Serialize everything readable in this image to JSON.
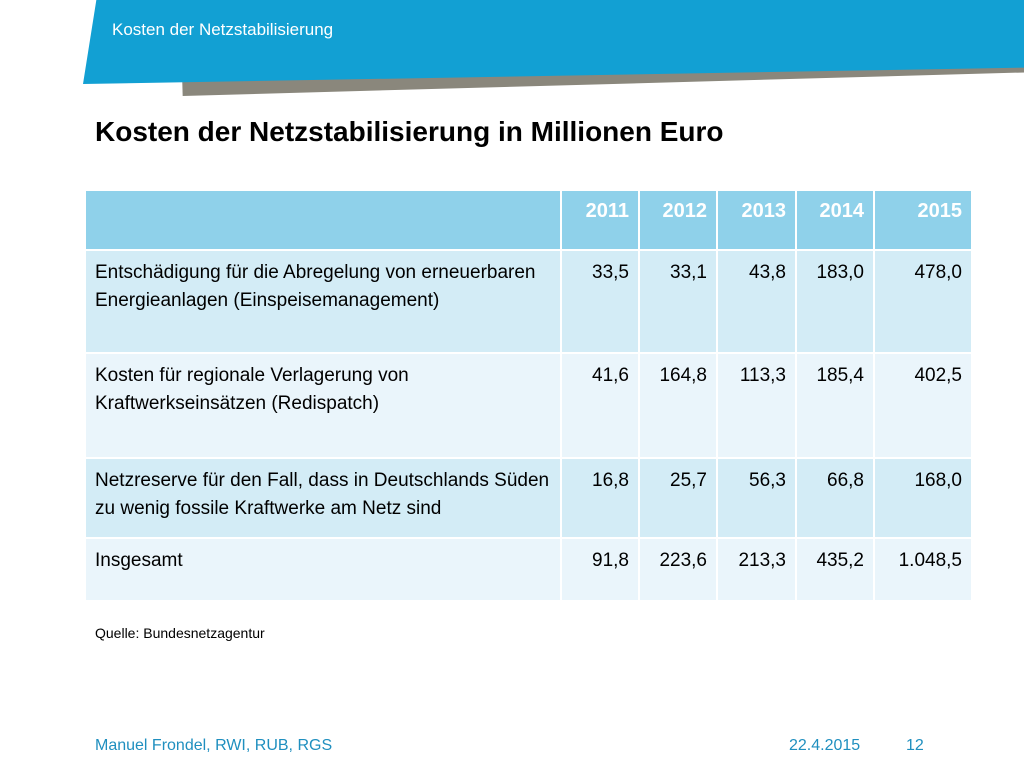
{
  "header": {
    "title": "Kosten der Netzstabilisierung"
  },
  "slide": {
    "title": "Kosten der Netzstabilisierung in Millionen Euro"
  },
  "table": {
    "columns": [
      "",
      "2011",
      "2012",
      "2013",
      "2014",
      "2015"
    ],
    "rows": [
      {
        "label": "Entschädigung für die Abregelung von erneuerbaren Energieanlagen (Einspeisemanagement)",
        "values": [
          "33,5",
          "33,1",
          "43,8",
          "183,0",
          "478,0"
        ]
      },
      {
        "label": "Kosten für regionale Verlagerung von Kraftwerkseinsätzen (Redispatch)",
        "values": [
          "41,6",
          "164,8",
          "113,3",
          "185,4",
          "402,5"
        ]
      },
      {
        "label": "Netzreserve für den Fall, dass in Deutschlands Süden zu wenig fossile Kraftwerke am Netz sind",
        "values": [
          "16,8",
          "25,7",
          "56,3",
          "66,8",
          "168,0"
        ]
      },
      {
        "label": "Insgesamt",
        "values": [
          "91,8",
          "223,6",
          "213,3",
          "435,2",
          "1.048,5"
        ]
      }
    ]
  },
  "source": "Quelle: Bundesnetzagentur",
  "footer": {
    "author": "Manuel Frondel, RWI, RUB, RGS",
    "date": "22.4.2015",
    "page": "12"
  },
  "colors": {
    "banner_blue": "#12a0d3",
    "banner_gray": "#8a877c",
    "table_header": "#8fd1ea",
    "table_row_dark": "#d3ecf6",
    "table_row_light": "#eaf5fb",
    "footer_text": "#1f8fbf"
  }
}
